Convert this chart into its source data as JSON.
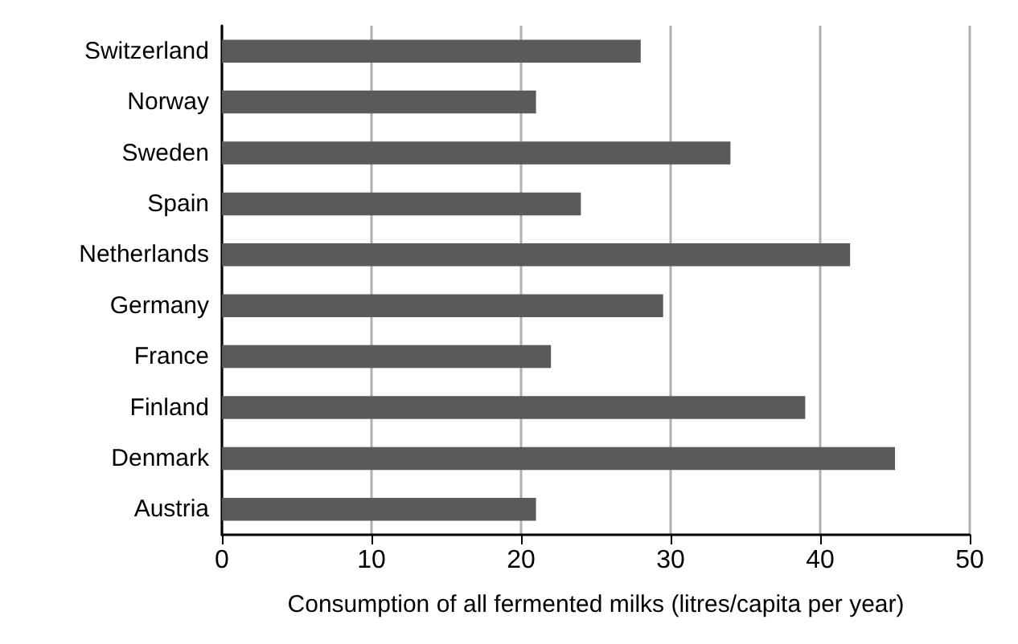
{
  "chart_data": {
    "type": "bar",
    "orientation": "horizontal",
    "xlabel": "Consumption of all fermented milks (litres/capita per year)",
    "categories": [
      "Switzerland",
      "Norway",
      "Sweden",
      "Spain",
      "Netherlands",
      "Germany",
      "France",
      "Finland",
      "Denmark",
      "Austria"
    ],
    "values": [
      28,
      21,
      34,
      24,
      42,
      29.5,
      22,
      39,
      45,
      21
    ],
    "color": "#5a5a5a",
    "xlim": [
      0,
      50
    ],
    "xticks": [
      0,
      10,
      20,
      30,
      40,
      50
    ],
    "grid": "x"
  }
}
